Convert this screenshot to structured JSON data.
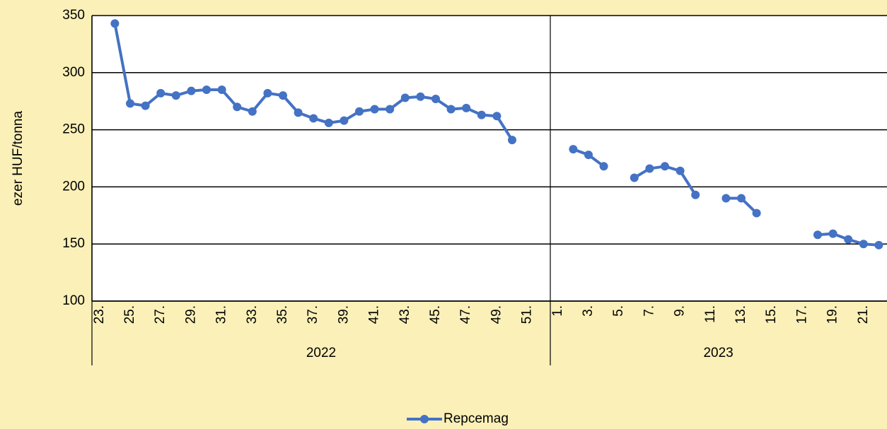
{
  "chart_data": {
    "type": "line",
    "y_label": "ezer HUF/tonna",
    "category_groups": [
      {
        "name": "2022",
        "categories": [
          "23.",
          null,
          "25.",
          null,
          "27.",
          null,
          "29.",
          null,
          "31.",
          null,
          "33.",
          null,
          "35.",
          null,
          "37.",
          null,
          "39.",
          null,
          "41.",
          null,
          "43.",
          null,
          "45.",
          null,
          "47.",
          null,
          "49.",
          null,
          "51.",
          null
        ]
      },
      {
        "name": "2023",
        "categories": [
          "1.",
          null,
          "3.",
          null,
          "5.",
          null,
          "7.",
          null,
          "9.",
          null,
          "11.",
          null,
          "13.",
          null,
          "15.",
          null,
          "17.",
          null,
          "19.",
          null,
          "21.",
          null
        ]
      }
    ],
    "series": [
      {
        "name": "Repcemag",
        "color": "#4472c4",
        "values": [
          null,
          343,
          273,
          271,
          282,
          280,
          284,
          285,
          285,
          270,
          266,
          282,
          280,
          265,
          260,
          256,
          258,
          266,
          268,
          268,
          278,
          279,
          277,
          268,
          269,
          263,
          262,
          241,
          null,
          null,
          null,
          233,
          228,
          218,
          null,
          208,
          216,
          218,
          214,
          193,
          null,
          190,
          190,
          177,
          null,
          null,
          null,
          158,
          159,
          154,
          150,
          149
        ]
      }
    ],
    "ylim": [
      100,
      350
    ],
    "yticks": [
      100,
      150,
      200,
      250,
      300,
      350
    ],
    "grid": true,
    "legend": "bottom"
  }
}
